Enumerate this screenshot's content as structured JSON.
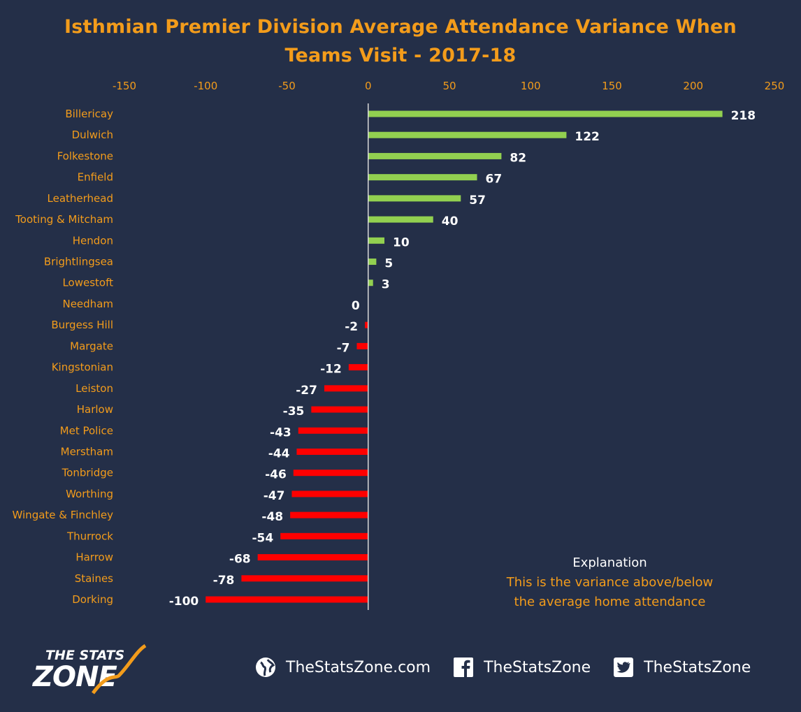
{
  "title_line1": "Isthmian Premier Division Average Attendance Variance When",
  "title_line2": "Teams Visit - 2017-18",
  "chart_data": {
    "type": "bar",
    "orientation": "horizontal",
    "title": "Isthmian Premier Division Average Attendance Variance When Teams Visit - 2017-18",
    "categories": [
      "Billericay",
      "Dulwich",
      "Folkestone",
      "Enfield",
      "Leatherhead",
      "Tooting & Mitcham",
      "Hendon",
      "Brightlingsea",
      "Lowestoft",
      "Needham",
      "Burgess Hill",
      "Margate",
      "Kingstonian",
      "Leiston",
      "Harlow",
      "Met Police",
      "Merstham",
      "Tonbridge",
      "Worthing",
      "Wingate & Finchley",
      "Thurrock",
      "Harrow",
      "Staines",
      "Dorking"
    ],
    "values": [
      218,
      122,
      82,
      67,
      57,
      40,
      10,
      5,
      3,
      0,
      -2,
      -7,
      -12,
      -27,
      -35,
      -43,
      -44,
      -46,
      -47,
      -48,
      -54,
      -68,
      -78,
      -100
    ],
    "xlim": [
      -150,
      250
    ],
    "xticks": [
      "-150",
      "-100",
      "-50",
      "0",
      "50",
      "100",
      "150",
      "200",
      "250"
    ],
    "xtick_values": [
      -150,
      -100,
      -50,
      0,
      50,
      100,
      150,
      200,
      250
    ],
    "axis_position": "top",
    "grid": false,
    "positive_color": "#92d050",
    "negative_color": "#ff0000"
  },
  "explanation": {
    "heading": "Explanation",
    "line1": "This is the variance above/below",
    "line2": "the average home attendance"
  },
  "footer": {
    "website": "TheStatsZone.com",
    "facebook": "TheStatsZone",
    "twitter": "TheStatsZone"
  },
  "logo": {
    "line1": "THE STATS",
    "line2": "ZONE"
  }
}
